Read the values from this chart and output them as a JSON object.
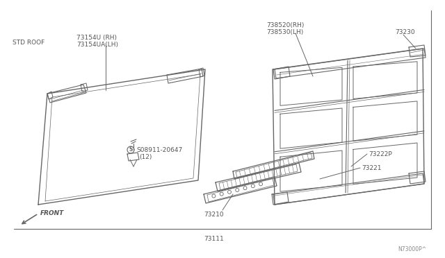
{
  "bg_color": "#ffffff",
  "line_color": "#666666",
  "label_color": "#555555",
  "diagram_number": "N73000P^",
  "labels": {
    "std_roof": "STD ROOF",
    "73154U": "73154U (RH)",
    "73154UA": "73154UA(LH)",
    "738520": "738520(RH)",
    "738530": "738530(LH)",
    "73230": "73230",
    "73222P": "73222P",
    "73221": "73221",
    "73210": "73210",
    "73111": "73111",
    "screw": "S08911-20647",
    "screw2": "(12)",
    "front": "FRONT"
  },
  "figsize": [
    6.4,
    3.72
  ],
  "dpi": 100
}
